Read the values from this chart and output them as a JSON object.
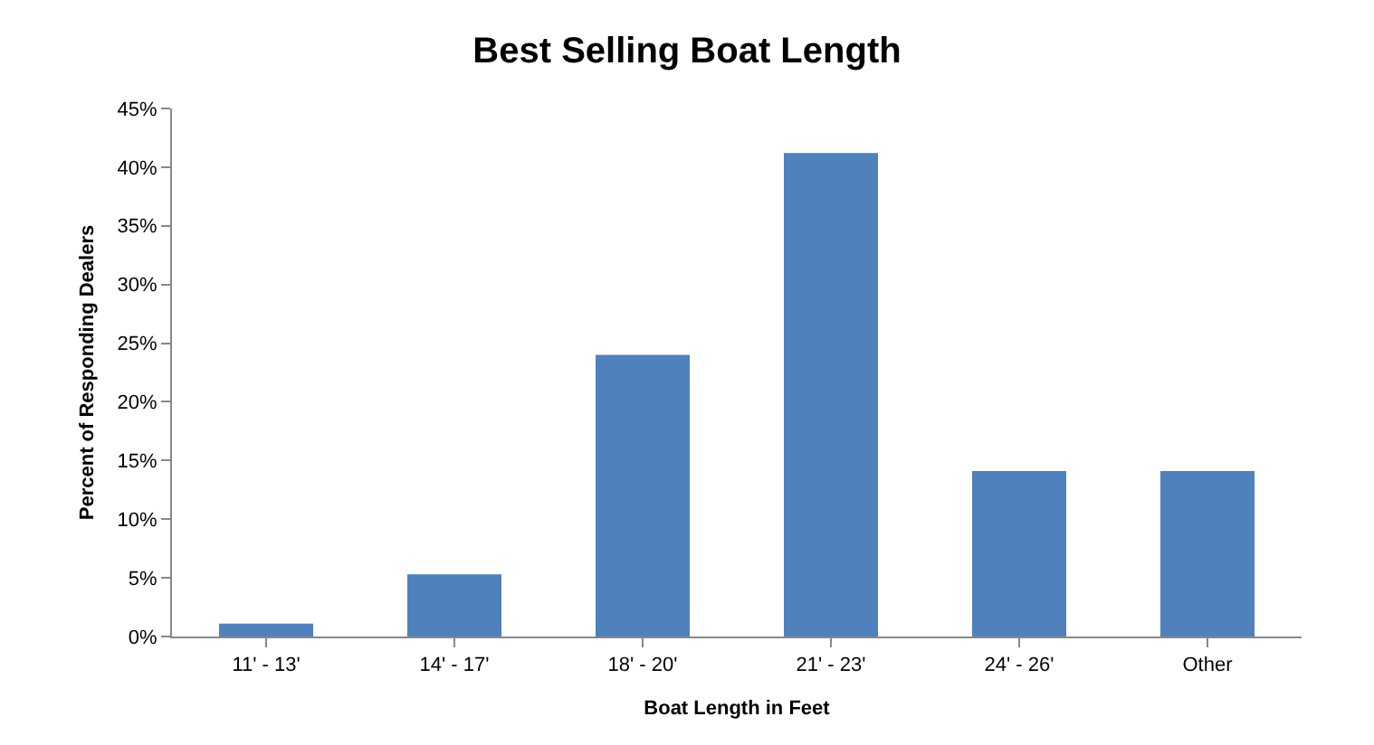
{
  "chart_data": {
    "type": "bar",
    "title": "Best Selling Boat Length",
    "xlabel": "Boat Length in Feet",
    "ylabel": "Percent of Responding Dealers",
    "categories": [
      "11' - 13'",
      "14' - 17'",
      "18' - 20'",
      "21' - 23'",
      "24' - 26'",
      "Other"
    ],
    "values": [
      1.1,
      5.3,
      24.0,
      41.2,
      14.1,
      14.1
    ],
    "color": "#4f81bd",
    "ylim": [
      0,
      45
    ],
    "yticks": [
      {
        "value": 0,
        "label": "0%"
      },
      {
        "value": 5,
        "label": "5%"
      },
      {
        "value": 10,
        "label": "10%"
      },
      {
        "value": 15,
        "label": "15%"
      },
      {
        "value": 20,
        "label": "20%"
      },
      {
        "value": 25,
        "label": "25%"
      },
      {
        "value": 30,
        "label": "30%"
      },
      {
        "value": 35,
        "label": "35%"
      },
      {
        "value": 40,
        "label": "40%"
      },
      {
        "value": 45,
        "label": "45%"
      }
    ],
    "grid": false
  }
}
